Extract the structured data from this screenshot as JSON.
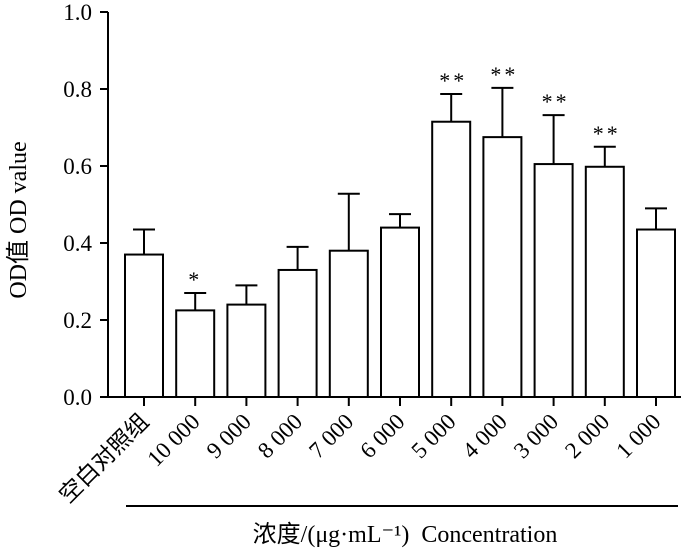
{
  "chart_data": {
    "type": "bar",
    "title": "",
    "xlabel": "浓度/(μg·mL⁻¹)  Concentration",
    "ylabel": "OD值  OD value",
    "ylim": [
      0,
      1.0
    ],
    "yticks": [
      "0.0",
      "0.2",
      "0.4",
      "0.6",
      "0.8",
      "1.0"
    ],
    "categories": [
      "空白对照组",
      "10 000",
      "9 000",
      "8 000",
      "7 000",
      "6 000",
      "5 000",
      "4 000",
      "3 000",
      "2 000",
      "1 000"
    ],
    "values": [
      0.37,
      0.225,
      0.24,
      0.33,
      0.38,
      0.44,
      0.715,
      0.675,
      0.605,
      0.598,
      0.435
    ],
    "errors": [
      0.065,
      0.045,
      0.05,
      0.06,
      0.148,
      0.035,
      0.072,
      0.128,
      0.127,
      0.052,
      0.055
    ],
    "significance": [
      "",
      "*",
      "",
      "",
      "",
      "",
      "**",
      "**",
      "**",
      "**",
      ""
    ],
    "colors": {
      "bar_fill": "#ffffff",
      "stroke": "#000000"
    }
  }
}
